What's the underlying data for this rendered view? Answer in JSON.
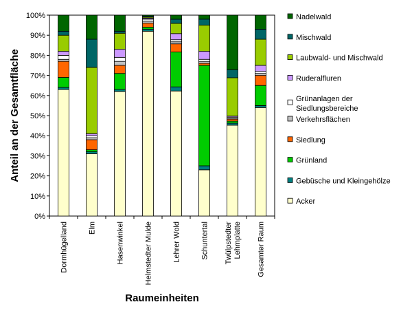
{
  "chart_data": {
    "type": "bar",
    "stacked": true,
    "percent": true,
    "xlabel": "Raumeinheiten",
    "ylabel": "Anteil an der Gesamtfläche",
    "ylim": [
      0,
      100
    ],
    "yticks": [
      "0%",
      "10%",
      "20%",
      "30%",
      "40%",
      "50%",
      "60%",
      "70%",
      "80%",
      "90%",
      "100%"
    ],
    "categories": [
      [
        "Dormhügelland"
      ],
      [
        "Elm"
      ],
      [
        "Hasenwinkel"
      ],
      [
        "Helmstedter Mulde"
      ],
      [
        "Lehrer Wold"
      ],
      [
        "Schuntertal"
      ],
      [
        "Twülpstedter",
        "Lehmplatte"
      ],
      [
        "Gesamter Raum"
      ]
    ],
    "legend_position": "right",
    "series": [
      {
        "name": "Acker",
        "color": "#FFFFCC",
        "values": [
          63,
          31,
          62,
          92,
          61,
          23,
          45,
          54
        ]
      },
      {
        "name": "Gebüsche und Kleingehölze",
        "color": "#008080",
        "values": [
          1,
          1,
          1,
          1,
          2,
          2,
          1,
          1
        ]
      },
      {
        "name": "Grünland",
        "color": "#00CC00",
        "values": [
          5,
          1,
          8,
          1,
          17,
          50,
          1,
          10
        ]
      },
      {
        "name": "Siedlung",
        "color": "#FF6600",
        "values": [
          8,
          5,
          4,
          2,
          4,
          1,
          1,
          5
        ]
      },
      {
        "name": "Verkehrsflächen",
        "color": "#C0C0C0",
        "values": [
          1,
          1,
          2,
          1,
          1,
          1,
          0.5,
          1
        ]
      },
      {
        "name": "Grünanlagen der Siedlungsbereiche",
        "legend_lines": [
          "Grünanlagen der",
          "Siedlungsbereiche"
        ],
        "color": "#FFFFFF",
        "values": [
          2,
          1,
          2,
          1,
          1,
          1,
          0.5,
          1
        ]
      },
      {
        "name": "Ruderalfluren",
        "color": "#CC99FF",
        "values": [
          2,
          1,
          4,
          0.5,
          3,
          4,
          0.5,
          3
        ]
      },
      {
        "name": "Laubwald- und Mischwald",
        "color": "#99CC00",
        "values": [
          8,
          33,
          8,
          0.5,
          5,
          13,
          19,
          13
        ]
      },
      {
        "name": "Mischwald",
        "color": "#006666",
        "values": [
          2,
          14,
          1,
          0.5,
          2,
          3,
          4,
          5
        ]
      },
      {
        "name": "Nadelwald",
        "color": "#006600",
        "values": [
          8,
          12,
          8,
          0.5,
          2,
          2,
          27,
          7
        ]
      }
    ]
  }
}
